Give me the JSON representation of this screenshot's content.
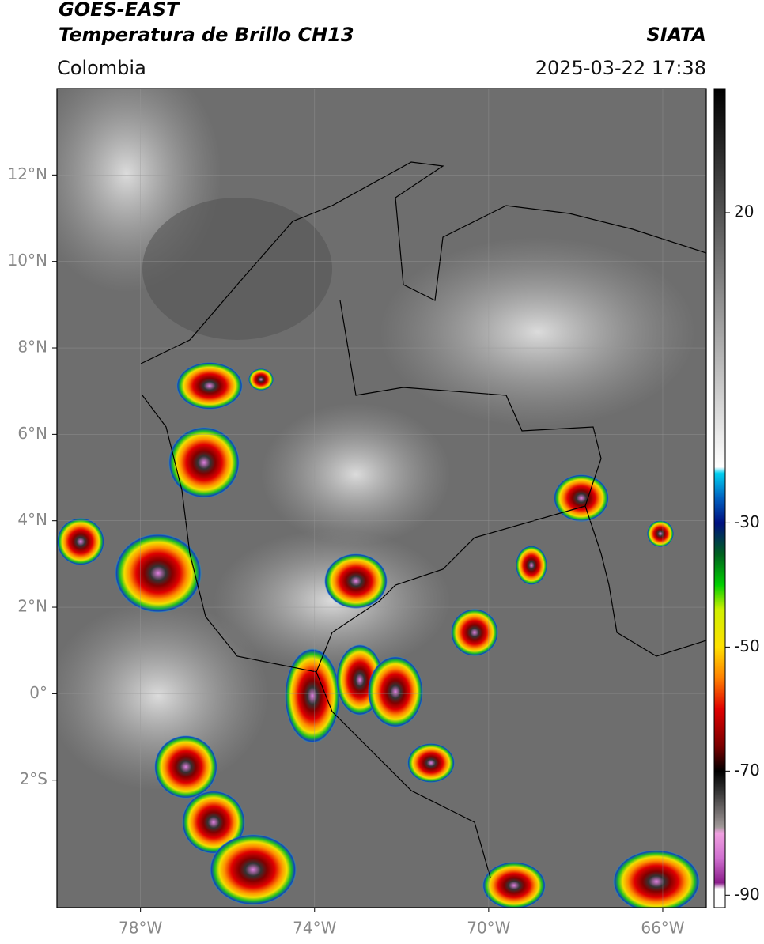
{
  "header": {
    "satellite": "GOES-EAST",
    "product": "Temperatura de Brillo CH13",
    "agency": "SIATA",
    "region": "Colombia",
    "datetime": "2025-03-22 17:38"
  },
  "map": {
    "xlim": [
      -79.92,
      -65.0
    ],
    "ylim": [
      -4.95,
      14.0
    ],
    "xticks": [
      {
        "value": -78,
        "label": "78°W"
      },
      {
        "value": -74,
        "label": "74°W"
      },
      {
        "value": -70,
        "label": "70°W"
      },
      {
        "value": -66,
        "label": "66°W"
      }
    ],
    "yticks": [
      {
        "value": 12,
        "label": "12°N"
      },
      {
        "value": 10,
        "label": "10°N"
      },
      {
        "value": 8,
        "label": "8°N"
      },
      {
        "value": 6,
        "label": "6°N"
      },
      {
        "value": 4,
        "label": "4°N"
      },
      {
        "value": 2,
        "label": "2°N"
      },
      {
        "value": 0,
        "label": "0°"
      },
      {
        "value": -2,
        "label": "2°S"
      }
    ],
    "grid": true
  },
  "colorbar": {
    "clim": [
      -92,
      40
    ],
    "ticks": [
      20,
      -30,
      -50,
      -70,
      -90
    ],
    "colormap": [
      [
        -92,
        "#ffffff"
      ],
      [
        -89,
        "#ffffff"
      ],
      [
        -88,
        "#8a1c8a"
      ],
      [
        -84,
        "#d070d0"
      ],
      [
        -80,
        "#f0a0e0"
      ],
      [
        -79,
        "#a09898"
      ],
      [
        -73,
        "#303030"
      ],
      [
        -70,
        "#000000"
      ],
      [
        -66,
        "#7a0000"
      ],
      [
        -60,
        "#e00000"
      ],
      [
        -55,
        "#ff8000"
      ],
      [
        -50,
        "#ffe000"
      ],
      [
        -44,
        "#d0f000"
      ],
      [
        -40,
        "#00d000"
      ],
      [
        -35,
        "#006020"
      ],
      [
        -30,
        "#001080"
      ],
      [
        -26,
        "#0060c0"
      ],
      [
        -22,
        "#00d0f0"
      ],
      [
        -21,
        "#ffffff"
      ],
      [
        40,
        "#000000"
      ]
    ]
  }
}
